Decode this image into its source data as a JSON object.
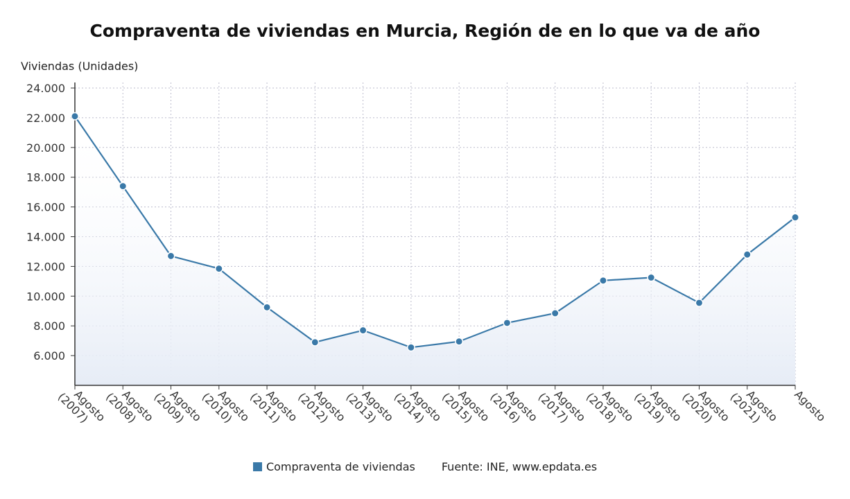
{
  "chart_data": {
    "type": "area",
    "title": "Compraventa de viviendas en Murcia, Región de en lo que va de año",
    "ylabel": "Viviendas (Unidades)",
    "xlabel": "",
    "categories": [
      "Agosto (2007)",
      "Agosto (2008)",
      "Agosto (2009)",
      "Agosto (2010)",
      "Agosto (2011)",
      "Agosto (2012)",
      "Agosto (2013)",
      "Agosto (2014)",
      "Agosto (2015)",
      "Agosto (2016)",
      "Agosto (2017)",
      "Agosto (2018)",
      "Agosto (2019)",
      "Agosto (2020)",
      "Agosto (2021)",
      "Agosto"
    ],
    "series": [
      {
        "name": "Compraventa de viviendas",
        "values": [
          22100,
          17400,
          12700,
          11850,
          9250,
          6900,
          7700,
          6550,
          6950,
          8200,
          8850,
          11050,
          11250,
          9550,
          12800,
          15300
        ]
      }
    ],
    "ylim": [
      4000,
      24000
    ],
    "yticks": [
      "6.000",
      "8.000",
      "10.000",
      "12.000",
      "14.000",
      "16.000",
      "18.000",
      "20.000",
      "22.000",
      "24.000"
    ],
    "grid": true,
    "legend_position": "bottom-center",
    "colors": {
      "line": "#3a79a8",
      "marker": "#3a79a8",
      "fill_top": "#eef2f8",
      "grid": "#bbbbcc"
    }
  },
  "source": "Fuente: INE, www.epdata.es"
}
